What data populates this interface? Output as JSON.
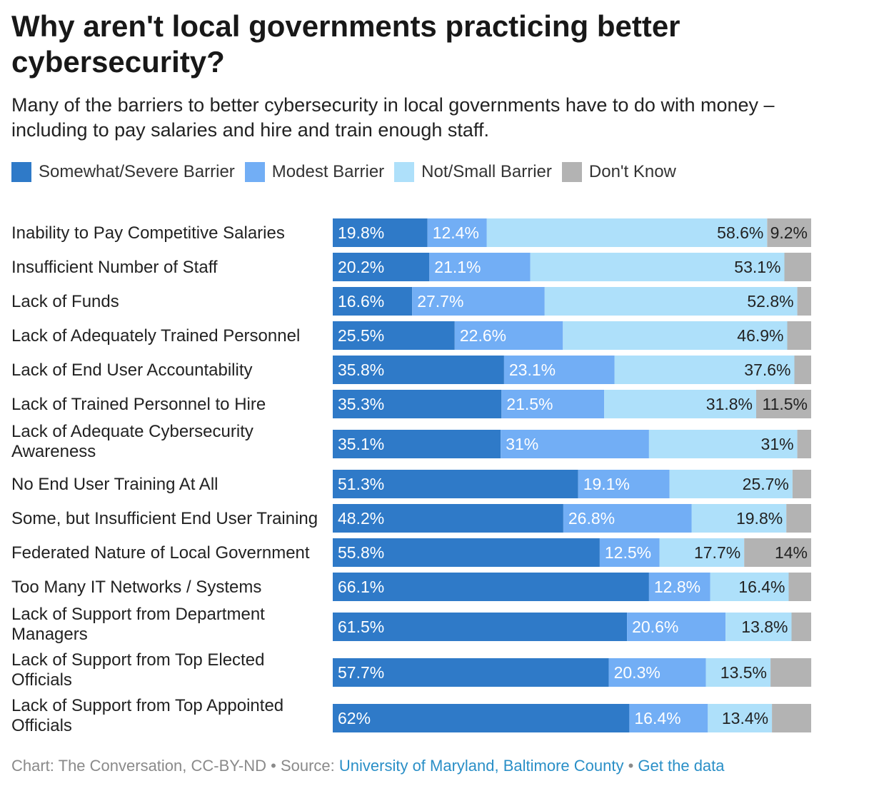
{
  "chart_data": {
    "type": "bar",
    "orientation": "horizontal",
    "stacked": true,
    "percent_stacked": true,
    "title": "Why aren't local governments practicing better cybersecurity?",
    "subtitle": "Many of the barriers to better cybersecurity in local governments have to do with money – including to pay salaries and hire and train enough staff.",
    "legend_placement": "top-left",
    "grid": false,
    "xlim": [
      0,
      100
    ],
    "categories": [
      "Inability to Pay Competitive Salaries",
      "Insufficient Number of Staff",
      "Lack of Funds",
      "Lack of Adequately Trained Personnel",
      "Lack of End User Accountability",
      "Lack of Trained Personnel to Hire",
      "Lack of Adequate Cybersecurity Awareness",
      "No End User Training At All",
      "Some, but Insufficient End User Training",
      "Federated Nature of Local Government",
      "Too Many IT Networks / Systems",
      "Lack of Support from Department Managers",
      "Lack of Support from Top Elected Officials",
      "Lack of Support from Top Appointed Officials"
    ],
    "series": [
      {
        "name": "Somewhat/Severe Barrier",
        "color": "#2f7ac8",
        "label_color": "#ffffff",
        "values": [
          19.8,
          20.2,
          16.6,
          25.5,
          35.8,
          35.3,
          35.1,
          51.3,
          48.2,
          55.8,
          66.1,
          61.5,
          57.7,
          62
        ],
        "labels": [
          "19.8%",
          "20.2%",
          "16.6%",
          "25.5%",
          "35.8%",
          "35.3%",
          "35.1%",
          "51.3%",
          "48.2%",
          "55.8%",
          "66.1%",
          "61.5%",
          "57.7%",
          "62%"
        ]
      },
      {
        "name": "Modest Barrier",
        "color": "#72aef5",
        "label_color": "#ffffff",
        "values": [
          12.4,
          21.1,
          27.7,
          22.6,
          23.1,
          21.5,
          31,
          19.1,
          26.8,
          12.5,
          12.8,
          20.6,
          20.3,
          16.4
        ],
        "labels": [
          "12.4%",
          "21.1%",
          "27.7%",
          "22.6%",
          "23.1%",
          "21.5%",
          "31%",
          "19.1%",
          "26.8%",
          "12.5%",
          "12.8%",
          "20.6%",
          "20.3%",
          "16.4%"
        ]
      },
      {
        "name": "Not/Small Barrier",
        "color": "#aee0fa",
        "label_color": "#222222",
        "values": [
          58.6,
          53.1,
          52.8,
          46.9,
          37.6,
          31.8,
          31,
          25.7,
          19.8,
          17.7,
          16.4,
          13.8,
          13.5,
          13.4
        ],
        "labels": [
          "58.6%",
          "53.1%",
          "52.8%",
          "46.9%",
          "37.6%",
          "31.8%",
          "31%",
          "25.7%",
          "19.8%",
          "17.7%",
          "16.4%",
          "13.8%",
          "13.5%",
          "13.4%"
        ]
      },
      {
        "name": "Don't Know",
        "color": "#b3b3b3",
        "label_color": "#222222",
        "values": [
          9.2,
          5.6,
          2.9,
          5.0,
          3.5,
          11.5,
          2.9,
          3.9,
          5.2,
          14,
          4.7,
          4.1,
          8.5,
          8.2
        ],
        "labels": [
          "9.2%",
          "",
          "",
          "",
          "",
          "11.5%",
          "",
          "",
          "",
          "14%",
          "",
          "",
          "",
          ""
        ]
      }
    ]
  },
  "footer": {
    "prefix": "Chart: The Conversation, CC-BY-ND • Source: ",
    "source": "University of Maryland, Baltimore County",
    "separator": " • ",
    "data_link": "Get the data"
  }
}
